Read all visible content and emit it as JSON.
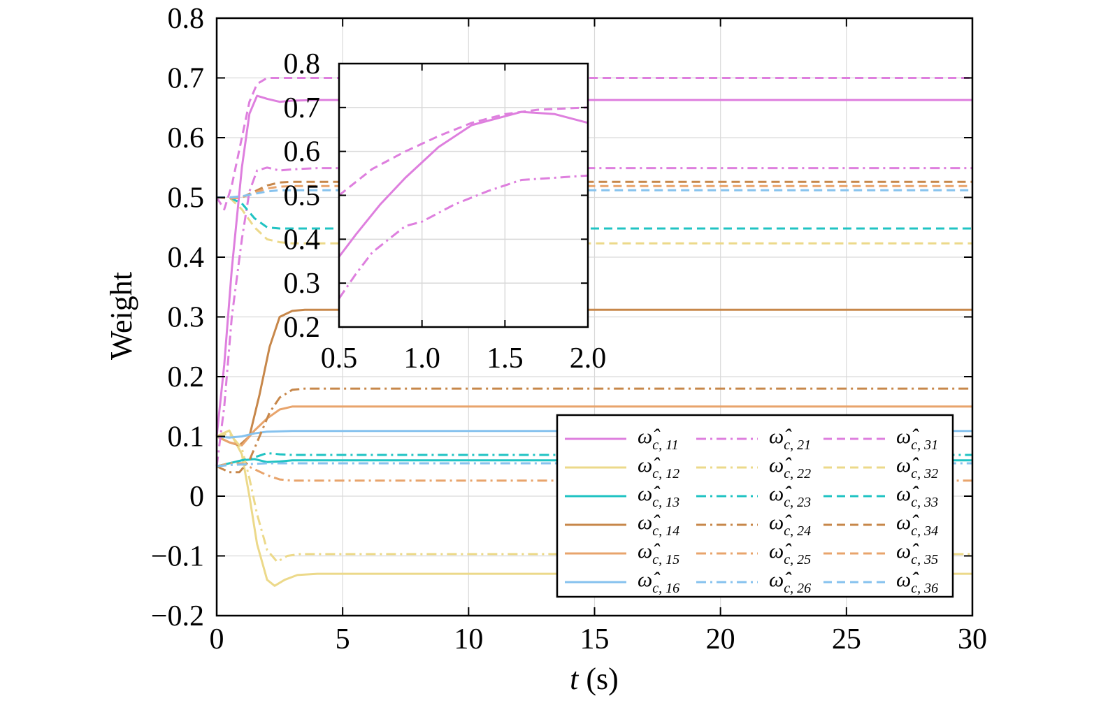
{
  "chart_data": {
    "type": "line",
    "xlabel_var": "t",
    "xlabel_unit": " (s)",
    "ylabel": "Weight",
    "xlim": [
      0,
      30
    ],
    "ylim": [
      -0.2,
      0.8
    ],
    "x_ticks": [
      0,
      5,
      10,
      15,
      20,
      25,
      30
    ],
    "x_tick_labels": [
      "0",
      "5",
      "10",
      "15",
      "20",
      "25",
      "30"
    ],
    "y_ticks": [
      -0.2,
      -0.1,
      0,
      0.1,
      0.2,
      0.3,
      0.4,
      0.5,
      0.6,
      0.7,
      0.8
    ],
    "y_tick_labels": [
      "−0.2",
      "−0.1",
      "0",
      "0.1",
      "0.2",
      "0.3",
      "0.4",
      "0.5",
      "0.6",
      "0.7",
      "0.8"
    ],
    "grid": true,
    "legend_position": "lower-right",
    "legend_symbol": "ω̂",
    "legend_sub_prefix": "c, ",
    "colors": {
      "pink": "#de7fde",
      "yellow": "#ecd98a",
      "teal": "#20c3c3",
      "brown": "#c7874a",
      "orange": "#e8a46c",
      "blue": "#86c2ee"
    },
    "series": [
      {
        "name": "11",
        "color": "#de7fde",
        "dash": "solid",
        "x": [
          0,
          0.3,
          0.6,
          1.0,
          1.3,
          1.6,
          2.0,
          2.5,
          3,
          4,
          30
        ],
        "y": [
          0.1,
          0.22,
          0.38,
          0.55,
          0.64,
          0.67,
          0.665,
          0.66,
          0.662,
          0.663,
          0.663
        ]
      },
      {
        "name": "12",
        "color": "#ecd98a",
        "dash": "solid",
        "x": [
          0,
          0.5,
          1.0,
          1.3,
          1.6,
          2.0,
          2.3,
          2.7,
          3.2,
          4,
          30
        ],
        "y": [
          0.1,
          0.11,
          0.07,
          0.0,
          -0.08,
          -0.14,
          -0.15,
          -0.14,
          -0.132,
          -0.13,
          -0.13
        ]
      },
      {
        "name": "13",
        "color": "#20c3c3",
        "dash": "solid",
        "x": [
          0,
          0.5,
          1.0,
          1.5,
          2.0,
          2.5,
          3,
          30
        ],
        "y": [
          0.05,
          0.055,
          0.06,
          0.062,
          0.057,
          0.058,
          0.06,
          0.06
        ]
      },
      {
        "name": "14",
        "color": "#c7874a",
        "dash": "solid",
        "x": [
          0,
          0.5,
          0.9,
          1.3,
          1.7,
          2.1,
          2.5,
          3.0,
          3.5,
          30
        ],
        "y": [
          0.1,
          0.09,
          0.085,
          0.1,
          0.17,
          0.25,
          0.3,
          0.31,
          0.312,
          0.312
        ]
      },
      {
        "name": "15",
        "color": "#e8a46c",
        "dash": "solid",
        "x": [
          0,
          0.5,
          1.0,
          1.5,
          2.0,
          2.5,
          3.0,
          30
        ],
        "y": [
          0.1,
          0.09,
          0.085,
          0.11,
          0.13,
          0.145,
          0.15,
          0.15
        ]
      },
      {
        "name": "16",
        "color": "#86c2ee",
        "dash": "solid",
        "x": [
          0,
          0.5,
          1.0,
          1.5,
          2.0,
          3.0,
          30
        ],
        "y": [
          0.1,
          0.098,
          0.1,
          0.105,
          0.108,
          0.109,
          0.109
        ]
      },
      {
        "name": "21",
        "color": "#de7fde",
        "dash": "dashdot",
        "x": [
          0,
          0.3,
          0.6,
          1.0,
          1.3,
          1.6,
          2.0,
          2.5,
          3,
          4,
          30
        ],
        "y": [
          0.05,
          0.15,
          0.3,
          0.43,
          0.51,
          0.545,
          0.55,
          0.545,
          0.547,
          0.549,
          0.549
        ]
      },
      {
        "name": "22",
        "color": "#ecd98a",
        "dash": "dashdot",
        "x": [
          0,
          0.5,
          1.0,
          1.3,
          1.6,
          2.0,
          2.4,
          2.8,
          3.3,
          4,
          30
        ],
        "y": [
          0.1,
          0.105,
          0.08,
          0.03,
          -0.03,
          -0.09,
          -0.11,
          -0.1,
          -0.097,
          -0.097,
          -0.097
        ]
      },
      {
        "name": "23",
        "color": "#20c3c3",
        "dash": "dashdot",
        "x": [
          0,
          0.5,
          1.0,
          1.5,
          2.0,
          2.5,
          3,
          30
        ],
        "y": [
          0.05,
          0.055,
          0.06,
          0.065,
          0.072,
          0.07,
          0.069,
          0.069
        ]
      },
      {
        "name": "24",
        "color": "#c7874a",
        "dash": "dashdot",
        "x": [
          0,
          0.5,
          0.9,
          1.3,
          1.7,
          2.1,
          2.5,
          3.0,
          3.5,
          30
        ],
        "y": [
          0.05,
          0.04,
          0.04,
          0.06,
          0.1,
          0.14,
          0.165,
          0.178,
          0.18,
          0.18
        ]
      },
      {
        "name": "25",
        "color": "#e8a46c",
        "dash": "dashdot",
        "x": [
          0,
          0.5,
          1.0,
          1.5,
          2.0,
          2.5,
          3.0,
          30
        ],
        "y": [
          0.05,
          0.055,
          0.055,
          0.045,
          0.035,
          0.028,
          0.026,
          0.026
        ]
      },
      {
        "name": "26",
        "color": "#86c2ee",
        "dash": "dashdot",
        "x": [
          0,
          0.5,
          1.0,
          1.5,
          2.0,
          3.0,
          30
        ],
        "y": [
          0.05,
          0.052,
          0.053,
          0.054,
          0.055,
          0.055,
          0.055
        ]
      },
      {
        "name": "31",
        "color": "#de7fde",
        "dash": "dashed",
        "x": [
          0,
          0.3,
          0.6,
          1.0,
          1.3,
          1.6,
          2.0,
          2.5,
          3,
          30
        ],
        "y": [
          0.5,
          0.48,
          0.52,
          0.6,
          0.66,
          0.69,
          0.7,
          0.7,
          0.7,
          0.7
        ]
      },
      {
        "name": "32",
        "color": "#ecd98a",
        "dash": "dashed",
        "x": [
          0,
          0.5,
          1.0,
          1.5,
          2.0,
          2.5,
          3,
          30
        ],
        "y": [
          0.5,
          0.5,
          0.48,
          0.45,
          0.43,
          0.425,
          0.423,
          0.423
        ]
      },
      {
        "name": "33",
        "color": "#20c3c3",
        "dash": "dashed",
        "x": [
          0,
          0.5,
          1.0,
          1.5,
          2.0,
          2.5,
          3,
          30
        ],
        "y": [
          0.5,
          0.5,
          0.49,
          0.465,
          0.45,
          0.448,
          0.448,
          0.448
        ]
      },
      {
        "name": "34",
        "color": "#c7874a",
        "dash": "dashed",
        "x": [
          0,
          0.5,
          1.0,
          1.5,
          2.0,
          2.5,
          3,
          30
        ],
        "y": [
          0.5,
          0.498,
          0.5,
          0.51,
          0.52,
          0.525,
          0.526,
          0.526
        ]
      },
      {
        "name": "35",
        "color": "#e8a46c",
        "dash": "dashed",
        "x": [
          0,
          0.5,
          1.0,
          1.5,
          2.0,
          2.5,
          3,
          30
        ],
        "y": [
          0.5,
          0.498,
          0.5,
          0.508,
          0.515,
          0.518,
          0.519,
          0.519
        ]
      },
      {
        "name": "36",
        "color": "#86c2ee",
        "dash": "dashed",
        "x": [
          0,
          0.5,
          1.0,
          1.5,
          2.0,
          2.5,
          3,
          30
        ],
        "y": [
          0.5,
          0.5,
          0.502,
          0.506,
          0.51,
          0.512,
          0.512,
          0.512
        ]
      }
    ],
    "inset": {
      "xlim": [
        0.5,
        2.0
      ],
      "ylim": [
        0.2,
        0.8
      ],
      "x_ticks": [
        0.5,
        1.0,
        1.5,
        2.0
      ],
      "x_tick_labels": [
        "0.5",
        "1.0",
        "1.5",
        "2.0"
      ],
      "y_ticks": [
        0.2,
        0.3,
        0.4,
        0.5,
        0.6,
        0.7,
        0.8
      ],
      "y_tick_labels": [
        "0.2",
        "0.3",
        "0.4",
        "0.5",
        "0.6",
        "0.7",
        "0.8"
      ],
      "series": [
        {
          "ref": "11",
          "color": "#de7fde",
          "dash": "solid",
          "x": [
            0.5,
            0.6,
            0.75,
            0.9,
            1.1,
            1.3,
            1.6,
            1.8,
            2.0
          ],
          "y": [
            0.36,
            0.41,
            0.48,
            0.54,
            0.61,
            0.66,
            0.69,
            0.685,
            0.665
          ]
        },
        {
          "ref": "21",
          "color": "#de7fde",
          "dash": "dashdot",
          "x": [
            0.5,
            0.6,
            0.7,
            0.8,
            0.9,
            1.0,
            1.2,
            1.4,
            1.6,
            1.8,
            2.0
          ],
          "y": [
            0.265,
            0.32,
            0.37,
            0.4,
            0.43,
            0.44,
            0.48,
            0.51,
            0.535,
            0.54,
            0.545
          ]
        },
        {
          "ref": "31",
          "color": "#de7fde",
          "dash": "dashed",
          "x": [
            0.5,
            0.7,
            0.9,
            1.1,
            1.3,
            1.5,
            1.7,
            2.0
          ],
          "y": [
            0.5,
            0.56,
            0.6,
            0.635,
            0.665,
            0.685,
            0.695,
            0.7
          ]
        }
      ]
    }
  }
}
